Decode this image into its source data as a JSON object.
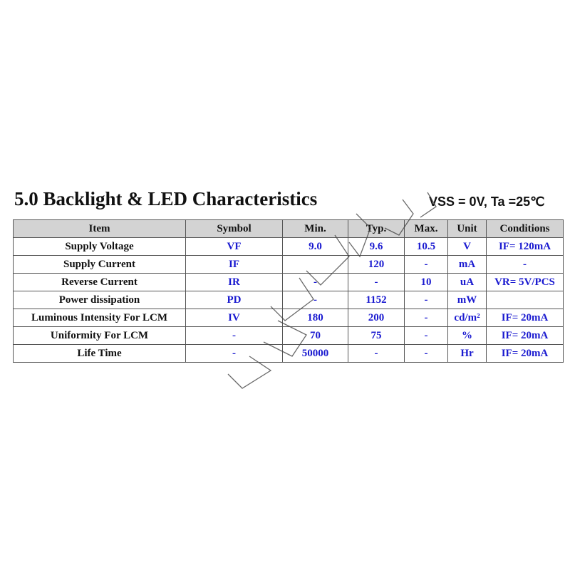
{
  "title": "5.0 Backlight & LED Characteristics",
  "conditions": "VSS = 0V, Ta =25℃",
  "table": {
    "headers": [
      "Item",
      "Symbol",
      "Min.",
      "Typ.",
      "Max.",
      "Unit",
      "Conditions"
    ],
    "rows": [
      [
        "Supply Voltage",
        "VF",
        "9.0",
        "9.6",
        "10.5",
        "V",
        "IF= 120mA"
      ],
      [
        "Supply Current",
        "IF",
        "",
        "120",
        "-",
        "mA",
        "-"
      ],
      [
        "Reverse Current",
        "IR",
        "-",
        "-",
        "10",
        "uA",
        "VR= 5V/PCS"
      ],
      [
        "Power dissipation",
        "PD",
        "-",
        "1152",
        "-",
        "mW",
        ""
      ],
      [
        "Luminous Intensity For LCM",
        "IV",
        "180",
        "200",
        "-",
        "cd/m²",
        "IF= 20mA"
      ],
      [
        "Uniformity For LCM",
        "-",
        "70",
        "75",
        "-",
        "%",
        "IF= 20mA"
      ],
      [
        "Life Time",
        "-",
        "50000",
        "-",
        "-",
        "Hr",
        "IF= 20mA"
      ]
    ]
  },
  "colors": {
    "value_text": "#1a1ad0",
    "header_bg": "#d3d3d3"
  }
}
